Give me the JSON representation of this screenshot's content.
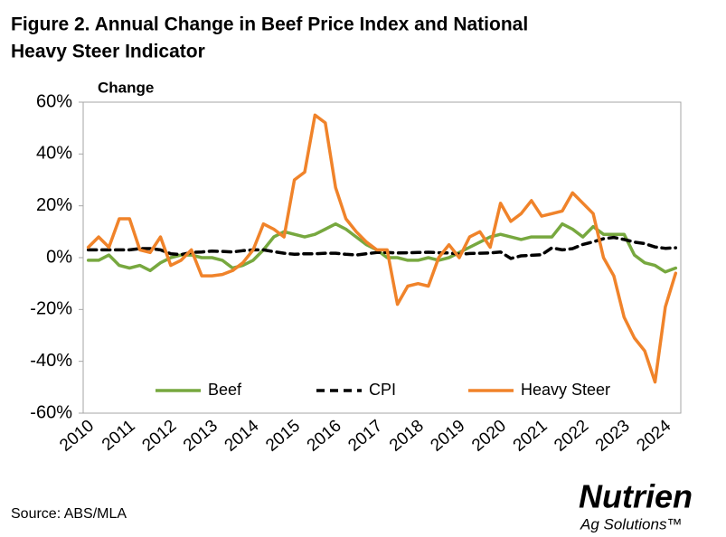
{
  "chart_data": {
    "type": "line",
    "title": "Figure 2. Annual Change in Beef Price Index and National",
    "title_line2": "Heavy Steer Indicator",
    "y_axis_label": "Change",
    "source": "Source: ABS/MLA",
    "logo": {
      "name": "Nutrien",
      "tagline": "Ag Solutions™"
    },
    "categories": [
      "2010",
      null,
      null,
      null,
      "2011",
      null,
      null,
      null,
      "2012",
      null,
      null,
      null,
      "2013",
      null,
      null,
      null,
      "2014",
      null,
      null,
      null,
      "2015",
      null,
      null,
      null,
      "2016",
      null,
      null,
      null,
      "2017",
      null,
      null,
      null,
      "2018",
      null,
      null,
      null,
      "2019",
      null,
      null,
      null,
      "2020",
      null,
      null,
      null,
      "2021",
      null,
      null,
      null,
      "2022",
      null,
      null,
      null,
      "2023",
      null,
      null,
      null,
      "2024",
      null
    ],
    "series": [
      {
        "name": "Beef",
        "color": "#77a83f",
        "style": "solid",
        "values": [
          -1,
          -1,
          1,
          -3,
          -4,
          -3,
          -5,
          -2,
          0,
          1,
          1,
          0,
          0,
          -1,
          -4,
          -3,
          -1,
          3,
          8,
          10,
          9,
          8,
          9,
          11,
          13,
          11,
          8,
          5,
          3,
          0,
          0,
          -1,
          -1,
          0,
          -1,
          0,
          2,
          4,
          6,
          8,
          9,
          8,
          7,
          8,
          8,
          8,
          13,
          11,
          8,
          12,
          9,
          9,
          9,
          1,
          -2,
          -3,
          -5.5,
          -4
        ]
      },
      {
        "name": "CPI",
        "color": "#000000",
        "style": "dashed",
        "values": [
          3,
          3,
          3,
          3,
          3,
          3.5,
          3.5,
          3,
          1.5,
          1.2,
          2,
          2.2,
          2.5,
          2.4,
          2.2,
          2.7,
          3,
          3,
          2.3,
          1.7,
          1.3,
          1.5,
          1.5,
          1.7,
          1.7,
          1.3,
          1,
          1.5,
          2,
          2,
          1.8,
          1.9,
          2,
          2.1,
          1.9,
          1.8,
          1.3,
          1.6,
          1.7,
          1.8,
          2.2,
          -0.3,
          0.7,
          0.9,
          1.1,
          3.8,
          3,
          3.5,
          5.1,
          6.1,
          7.3,
          7.8,
          7,
          6,
          5.4,
          4.1,
          3.6,
          3.8
        ]
      },
      {
        "name": "Heavy Steer",
        "color": "#f0832a",
        "style": "solid",
        "values": [
          4,
          8,
          4,
          15,
          15,
          3,
          2,
          8,
          -3,
          -1,
          3,
          -7,
          -7,
          -6.5,
          -5,
          -2,
          3,
          13,
          11,
          8,
          30,
          33,
          55,
          52,
          27,
          15,
          10,
          6,
          3,
          3,
          -18,
          -11,
          -10,
          -11,
          0,
          5,
          0,
          8,
          10,
          4,
          21,
          14,
          17,
          22,
          16,
          17,
          18,
          25,
          21,
          17,
          0,
          -7,
          -23,
          -31,
          -36,
          -48,
          -19,
          -6
        ]
      }
    ],
    "ylim": [
      -60,
      60
    ],
    "yticks": [
      {
        "value": -60,
        "label": "-60%"
      },
      {
        "value": -40,
        "label": "-40%"
      },
      {
        "value": -20,
        "label": "-20%"
      },
      {
        "value": 0,
        "label": "0%"
      },
      {
        "value": 20,
        "label": "20%"
      },
      {
        "value": 40,
        "label": "40%"
      },
      {
        "value": 60,
        "label": "60%"
      }
    ],
    "grid": false,
    "legend": "bottom"
  }
}
